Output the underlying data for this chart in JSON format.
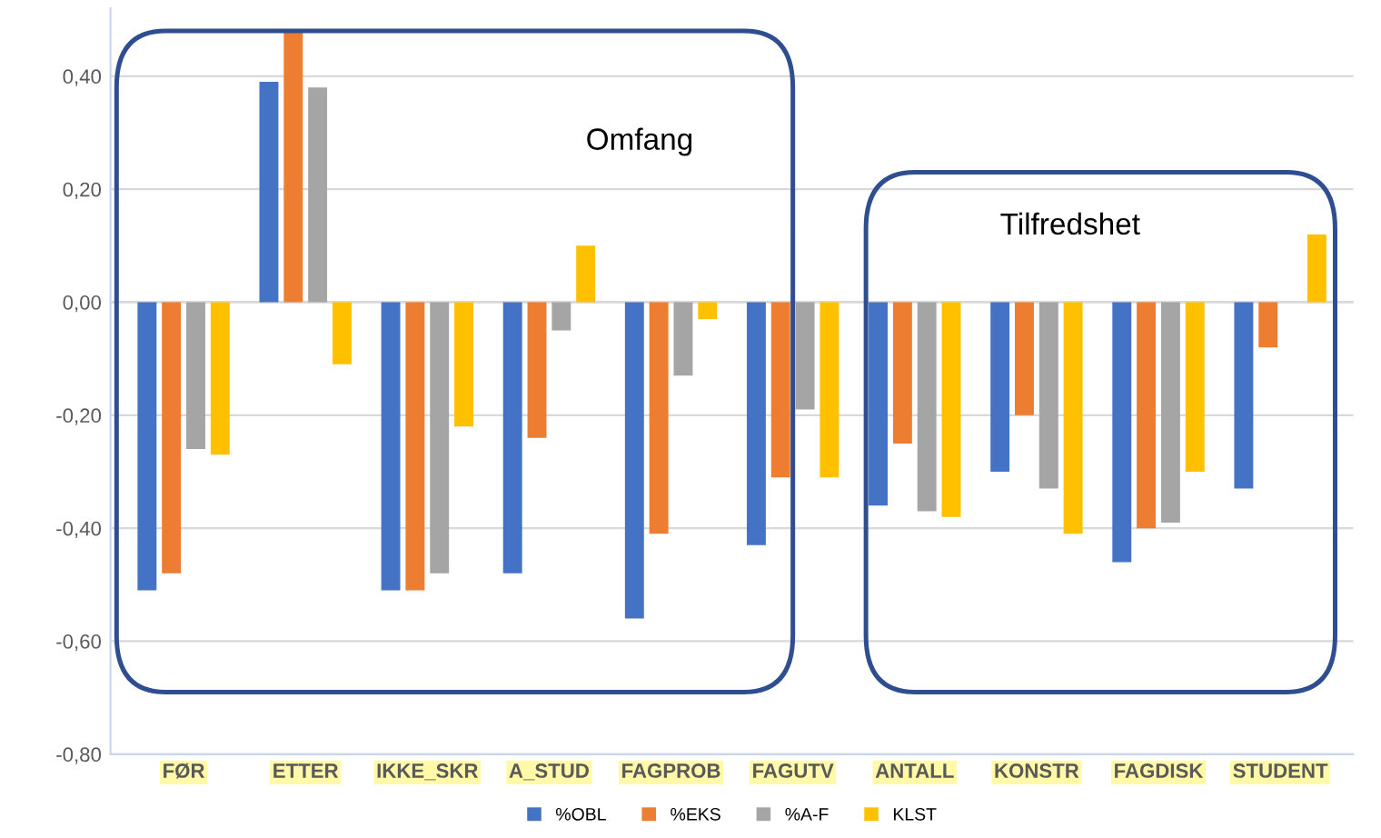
{
  "chart_data": {
    "type": "bar",
    "categories": [
      "FØR",
      "ETTER",
      "IKKE_SKR",
      "A_STUD",
      "FAGPROB",
      "FAGUTV",
      "ANTALL",
      "KONSTR",
      "FAGDISK",
      "STUDENT"
    ],
    "series": [
      {
        "name": "%OBL",
        "color": "#4472c4",
        "values": [
          -0.51,
          0.39,
          -0.51,
          -0.48,
          -0.56,
          -0.43,
          -0.36,
          -0.3,
          -0.46,
          -0.33
        ]
      },
      {
        "name": "%EKS",
        "color": "#ed7d31",
        "values": [
          -0.48,
          0.48,
          -0.51,
          -0.24,
          -0.41,
          -0.31,
          -0.25,
          -0.2,
          -0.4,
          -0.08
        ]
      },
      {
        "name": "%A-F",
        "color": "#a5a5a5",
        "values": [
          -0.26,
          0.38,
          -0.48,
          -0.05,
          -0.13,
          -0.19,
          -0.37,
          -0.33,
          -0.39,
          null
        ]
      },
      {
        "name": "KLST",
        "color": "#ffc000",
        "values": [
          -0.27,
          -0.11,
          -0.22,
          0.1,
          -0.03,
          -0.31,
          -0.38,
          -0.41,
          -0.3,
          0.12
        ]
      }
    ],
    "ylim": [
      -0.8,
      0.52
    ],
    "yticks": [
      {
        "value": -0.8,
        "label": "-0,80"
      },
      {
        "value": -0.6,
        "label": "-0,60"
      },
      {
        "value": -0.4,
        "label": "-0,40"
      },
      {
        "value": -0.2,
        "label": "-0,20"
      },
      {
        "value": 0,
        "label": "0,00"
      },
      {
        "value": 0.2,
        "label": "0,20"
      },
      {
        "value": 0.4,
        "label": "0,40"
      }
    ],
    "annotations": [
      "Omfang",
      "Tilfredshet"
    ],
    "grid": "y",
    "legend": "bottom"
  }
}
